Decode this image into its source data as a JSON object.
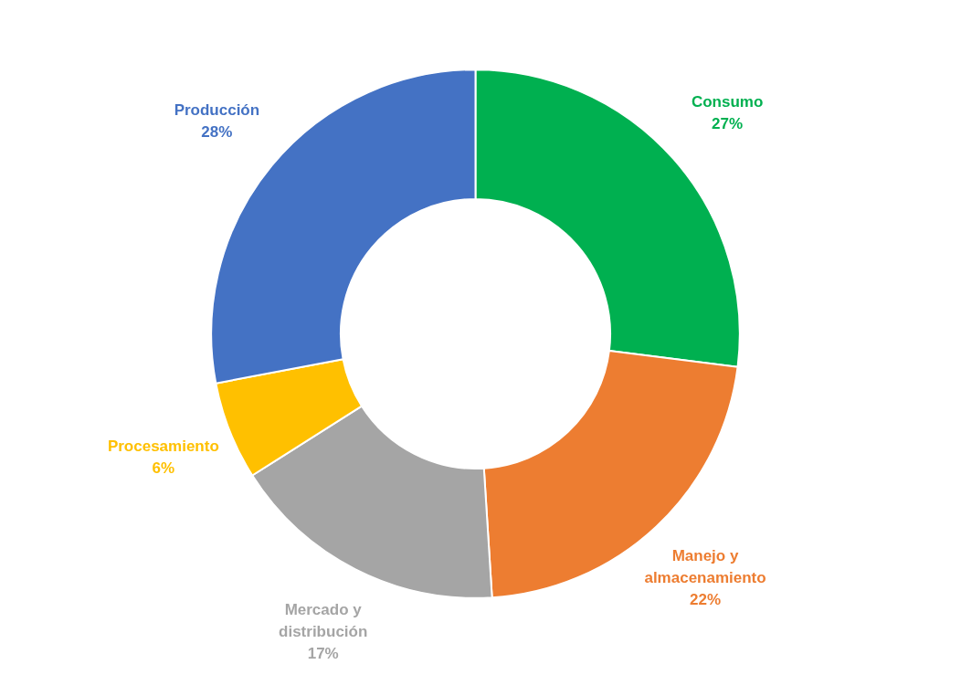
{
  "chart_data": {
    "type": "donut",
    "categories": [
      "Consumo",
      "Manejo y almacenamiento",
      "Mercado y distribución",
      "Procesamiento",
      "Producción"
    ],
    "values": [
      27,
      22,
      17,
      6,
      28
    ],
    "colors": [
      "#00b050",
      "#ed7d31",
      "#a5a5a5",
      "#ffc000",
      "#4472c4"
    ],
    "value_labels": [
      "27%",
      "22%",
      "17%",
      "6%",
      "28%"
    ],
    "legend": false
  }
}
